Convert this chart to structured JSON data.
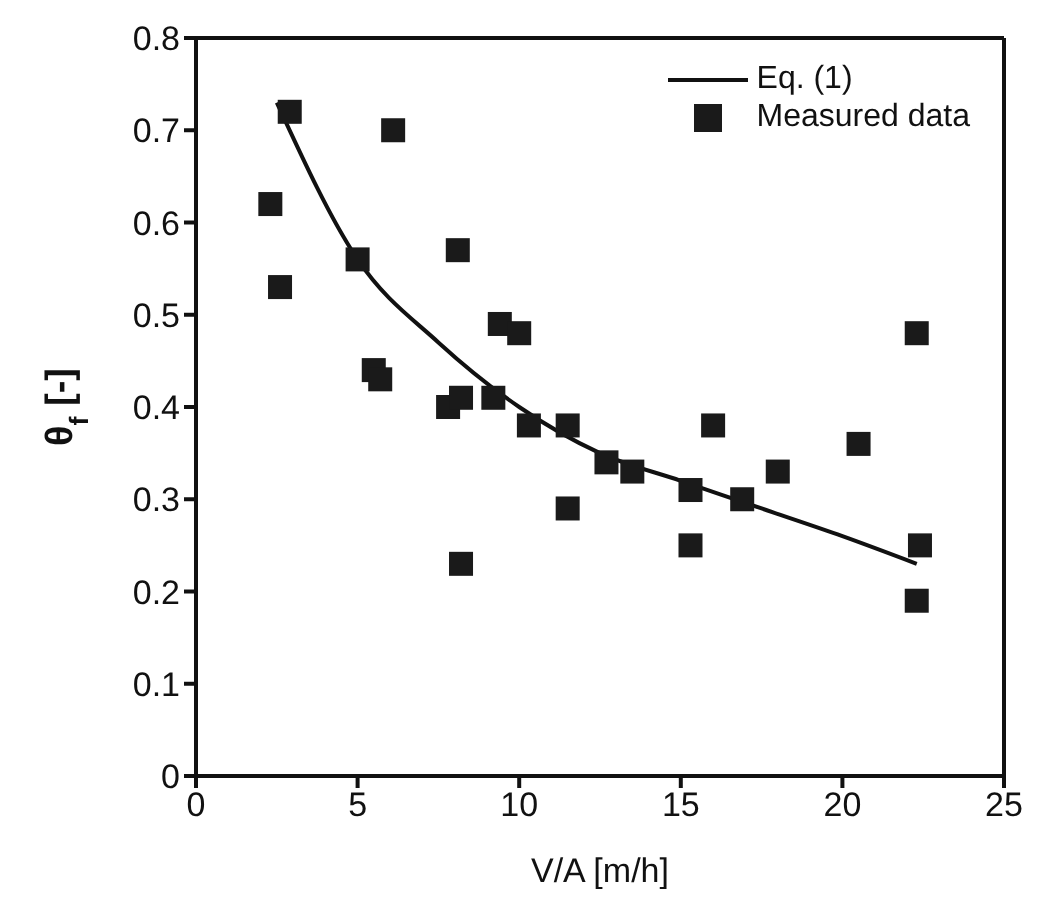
{
  "chart_data": {
    "type": "scatter",
    "xlabel": "V/A [m/h]",
    "ylabel": "θ$_{f}$ [-]",
    "xlim": [
      0,
      25
    ],
    "ylim": [
      0,
      0.8
    ],
    "xticks": [
      0,
      5,
      10,
      15,
      20,
      25
    ],
    "yticks": [
      0,
      0.1,
      0.2,
      0.3,
      0.4,
      0.5,
      0.6,
      0.7,
      0.8
    ],
    "legend": "top right",
    "series": [
      {
        "name": "Eq. (1)",
        "type": "line",
        "color": "#111111",
        "marker": "none",
        "line_style": "solid",
        "x": [
          2.5,
          5,
          7.5,
          10,
          12.5,
          15,
          17.5,
          20,
          22.3
        ],
        "values": [
          0.73,
          0.56,
          0.47,
          0.4,
          0.35,
          0.32,
          0.29,
          0.26,
          0.23
        ]
      },
      {
        "name": "Measured data",
        "color": "#1a1a1a",
        "marker": "square",
        "x": [
          2.3,
          2.6,
          2.9,
          5.0,
          5.5,
          5.7,
          6.1,
          7.8,
          8.2,
          8.1,
          8.2,
          9.2,
          9.4,
          10.0,
          10.3,
          11.5,
          11.5,
          12.7,
          13.5,
          15.3,
          15.3,
          16.0,
          16.9,
          18.0,
          20.5,
          22.3,
          22.4,
          22.3
        ],
        "values": [
          0.62,
          0.53,
          0.72,
          0.56,
          0.44,
          0.43,
          0.7,
          0.4,
          0.41,
          0.57,
          0.23,
          0.41,
          0.49,
          0.48,
          0.38,
          0.38,
          0.29,
          0.34,
          0.33,
          0.31,
          0.25,
          0.38,
          0.3,
          0.33,
          0.36,
          0.48,
          0.25,
          0.19
        ]
      }
    ]
  }
}
